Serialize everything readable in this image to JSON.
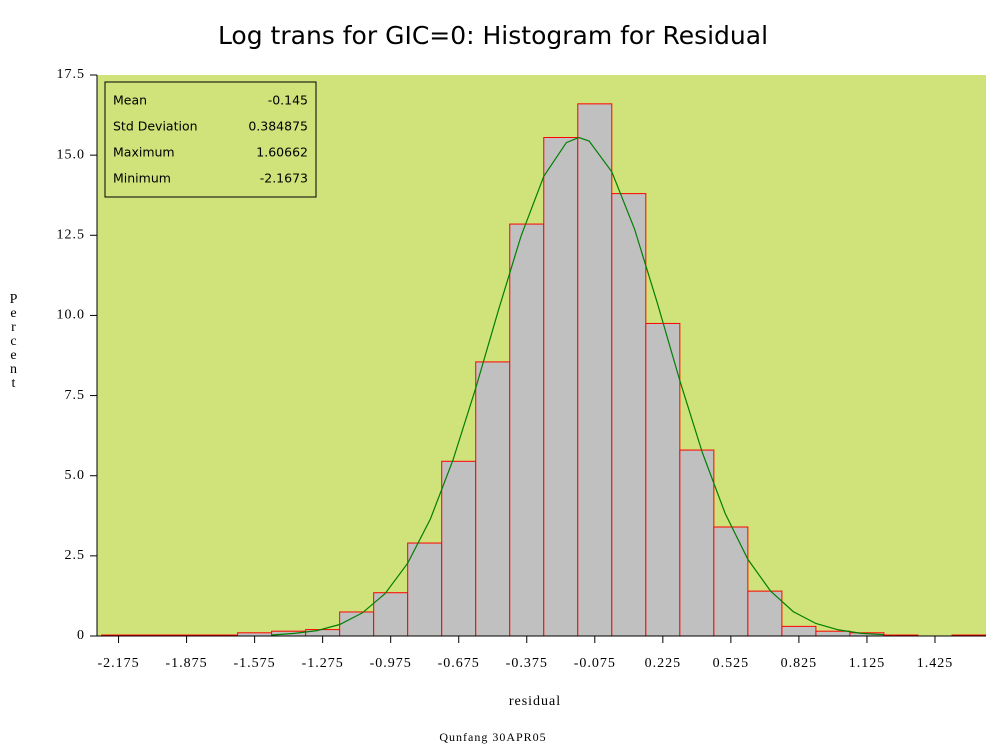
{
  "chart_data": {
    "type": "histogram",
    "title": "Log trans for GIC=0: Histogram for Residual",
    "x_label": "residual",
    "y_label": "Percent",
    "footnote": "Qunfang 30APR05",
    "background": "#d0e27a",
    "bar_color": "#c0c0c0",
    "bar_edge_color": "#ff0000",
    "bins": [
      -2.25,
      -2.1,
      -1.95,
      -1.8,
      -1.65,
      -1.5,
      -1.35,
      -1.2,
      -1.05,
      -0.9,
      -0.75,
      -0.6,
      -0.45,
      -0.3,
      -0.15,
      0,
      0.15,
      0.3,
      0.45,
      0.6,
      0.75,
      0.9,
      1.05,
      1.2,
      1.35,
      1.5,
      1.65
    ],
    "values": [
      0.03,
      0.03,
      0.03,
      0.03,
      0.1,
      0.15,
      0.2,
      0.75,
      1.35,
      2.9,
      5.45,
      8.55,
      12.85,
      15.55,
      16.6,
      13.8,
      9.75,
      5.8,
      3.4,
      1.4,
      0.3,
      0.15,
      0.1,
      0.03,
      0,
      0.03
    ],
    "curve": {
      "color": "#008000",
      "x": [
        -1.5,
        -1.4,
        -1.3,
        -1.2,
        -1.1,
        -1.0,
        -0.9,
        -0.8,
        -0.7,
        -0.6,
        -0.5,
        -0.4,
        -0.3,
        -0.2,
        -0.145,
        -0.1,
        0.0,
        0.1,
        0.2,
        0.3,
        0.4,
        0.5,
        0.6,
        0.7,
        0.8,
        0.9,
        1.0,
        1.1,
        1.2
      ],
      "y": [
        0.03,
        0.08,
        0.17,
        0.36,
        0.72,
        1.32,
        2.27,
        3.65,
        5.5,
        7.73,
        10.16,
        12.48,
        14.34,
        15.39,
        15.55,
        15.44,
        14.48,
        12.7,
        10.4,
        7.97,
        5.71,
        3.82,
        2.39,
        1.4,
        0.76,
        0.39,
        0.19,
        0.08,
        0.04
      ]
    },
    "xlim": [
      -2.27,
      1.65
    ],
    "xticks": [
      -2.175,
      -1.875,
      -1.575,
      -1.275,
      -0.975,
      -0.675,
      -0.375,
      -0.075,
      0.225,
      0.525,
      0.825,
      1.125,
      1.425
    ],
    "ylim": [
      0,
      17.5
    ],
    "yticks": [
      0,
      2.5,
      {
        "value": 5,
        "label": "5.0"
      },
      7.5,
      {
        "value": 10,
        "label": "10.0"
      },
      12.5,
      {
        "value": 15,
        "label": "15.0"
      },
      17.5
    ],
    "stats": [
      [
        "Mean",
        "-0.145"
      ],
      [
        "Std Deviation",
        "0.384875"
      ],
      [
        "Maximum",
        "1.60662"
      ],
      [
        "Minimum",
        "-2.1673"
      ]
    ]
  }
}
